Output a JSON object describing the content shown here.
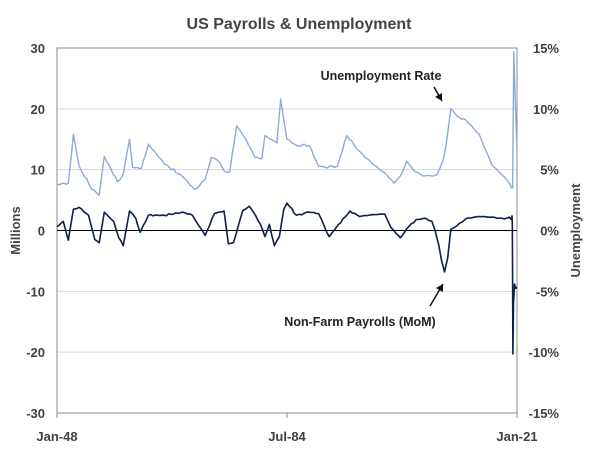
{
  "chart_data": {
    "type": "line",
    "title": "US Payrolls & Unemployment",
    "left_axis": {
      "label": "Millions",
      "range": [
        -30,
        30
      ],
      "ticks": [
        "30",
        "20",
        "10",
        "0",
        "-10",
        "-20",
        "-30"
      ],
      "tick_values": [
        30,
        20,
        10,
        0,
        -10,
        -20,
        -30
      ]
    },
    "right_axis": {
      "label": "Unemployment",
      "range": [
        -15,
        15
      ],
      "unit": "%",
      "ticks": [
        "15%",
        "10%",
        "5%",
        "0%",
        "-5%",
        "-10%",
        "-15%"
      ],
      "tick_values": [
        15,
        10,
        5,
        0,
        -5,
        -10,
        -15
      ]
    },
    "x_axis": {
      "range": [
        1948.0,
        2021.0
      ],
      "ticks": [
        "Jan-48",
        "Jul-84",
        "Jan-21"
      ],
      "tick_values": [
        1948.0,
        1984.5,
        2021.0
      ]
    },
    "grid": "horizontal",
    "zero_line": true,
    "annotations": [
      {
        "text": "Unemployment Rate",
        "series": "unemployment",
        "point": [
          2000.7,
          9.8
        ]
      },
      {
        "text": "Non-Farm Payrolls  (MoM)",
        "series": "payrolls",
        "point": [
          2007.7,
          -7
        ]
      }
    ],
    "series": [
      {
        "key": "unemployment",
        "axis": "right",
        "color": "#8eaad6",
        "x": [
          1948.0,
          1949.8,
          1950.6,
          1951.5,
          1953.5,
          1954.7,
          1955.5,
          1957.6,
          1958.5,
          1959.5,
          1960.0,
          1961.4,
          1962.5,
          1965.0,
          1968.0,
          1969.8,
          1970.5,
          1971.5,
          1972.5,
          1973.8,
          1974.5,
          1975.4,
          1976.5,
          1978.0,
          1979.4,
          1980.5,
          1981.0,
          1982.9,
          1983.5,
          1984.5,
          1986.0,
          1988.0,
          1989.5,
          1990.5,
          1992.5,
          1994.0,
          1996.0,
          1998.0,
          2000.3,
          2001.5,
          2002.5,
          2003.5,
          2004.5,
          2006.0,
          2007.3,
          2008.3,
          2009.3,
          2009.8,
          2010.5,
          2011.5,
          2013.0,
          2015.0,
          2017.0,
          2019.0,
          2020.0,
          2020.1,
          2020.3,
          2020.5,
          2020.7,
          2021.0
        ],
        "y": [
          3.8,
          3.9,
          7.9,
          5.3,
          3.4,
          2.9,
          6.1,
          4.0,
          4.6,
          7.5,
          5.2,
          5.1,
          7.1,
          5.5,
          4.4,
          3.4,
          3.6,
          4.2,
          6.0,
          5.6,
          4.9,
          4.8,
          8.6,
          7.5,
          6.0,
          5.9,
          7.8,
          7.2,
          10.8,
          7.5,
          7.0,
          7.0,
          5.3,
          5.2,
          5.3,
          7.8,
          6.5,
          5.5,
          4.6,
          3.9,
          4.5,
          5.7,
          5.0,
          4.5,
          4.5,
          4.6,
          5.8,
          7.2,
          10.0,
          9.4,
          9.0,
          7.9,
          5.4,
          4.4,
          3.7,
          3.5,
          3.5,
          14.7,
          11.0,
          6.7
        ]
      },
      {
        "key": "payrolls",
        "axis": "left",
        "color": "#0d1f4a",
        "x": [
          1948.0,
          1949.0,
          1949.8,
          1950.6,
          1951.5,
          1953.0,
          1954.0,
          1954.7,
          1955.5,
          1957.0,
          1957.8,
          1958.5,
          1959.5,
          1960.5,
          1961.2,
          1962.5,
          1965.0,
          1968.0,
          1969.5,
          1970.5,
          1971.5,
          1973.0,
          1974.5,
          1975.2,
          1976.0,
          1977.5,
          1978.5,
          1979.5,
          1980.3,
          1981.0,
          1981.7,
          1982.5,
          1983.3,
          1984.0,
          1984.5,
          1986.0,
          1988.0,
          1989.5,
          1990.5,
          1991.2,
          1992.3,
          1994.5,
          1996.0,
          1998.0,
          2000.0,
          2001.0,
          2001.8,
          2002.5,
          2003.5,
          2005.0,
          2006.5,
          2007.5,
          2008.0,
          2008.6,
          2009.0,
          2009.5,
          2010.0,
          2010.5,
          2011.5,
          2013.0,
          2015.0,
          2017.0,
          2019.0,
          2019.8,
          2020.1,
          2020.2,
          2020.25,
          2020.3,
          2020.35,
          2020.45,
          2020.6,
          2020.8,
          2021.0
        ],
        "y": [
          0.6,
          1.5,
          -1.6,
          3.5,
          3.8,
          2.5,
          -1.5,
          -2.0,
          3.0,
          1.5,
          -1.2,
          -2.5,
          3.2,
          2.0,
          -0.3,
          2.5,
          2.5,
          3.0,
          2.5,
          0.8,
          -0.8,
          2.8,
          3.2,
          -2.2,
          -2.0,
          3.3,
          4.0,
          2.5,
          1.0,
          -1.0,
          1.0,
          -2.5,
          -1.0,
          3.5,
          4.5,
          2.5,
          3.0,
          2.8,
          0.5,
          -1.0,
          0.5,
          3.2,
          2.3,
          2.6,
          2.7,
          0.5,
          -0.5,
          -1.2,
          0.3,
          1.8,
          2.0,
          1.5,
          0.0,
          -2.5,
          -4.8,
          -6.8,
          -4.5,
          0.2,
          0.8,
          2.0,
          2.3,
          2.2,
          1.9,
          2.2,
          1.8,
          2.4,
          1.5,
          -8.0,
          -20.3,
          -12.0,
          -8.8,
          -9.5,
          -9.3
        ]
      }
    ]
  }
}
